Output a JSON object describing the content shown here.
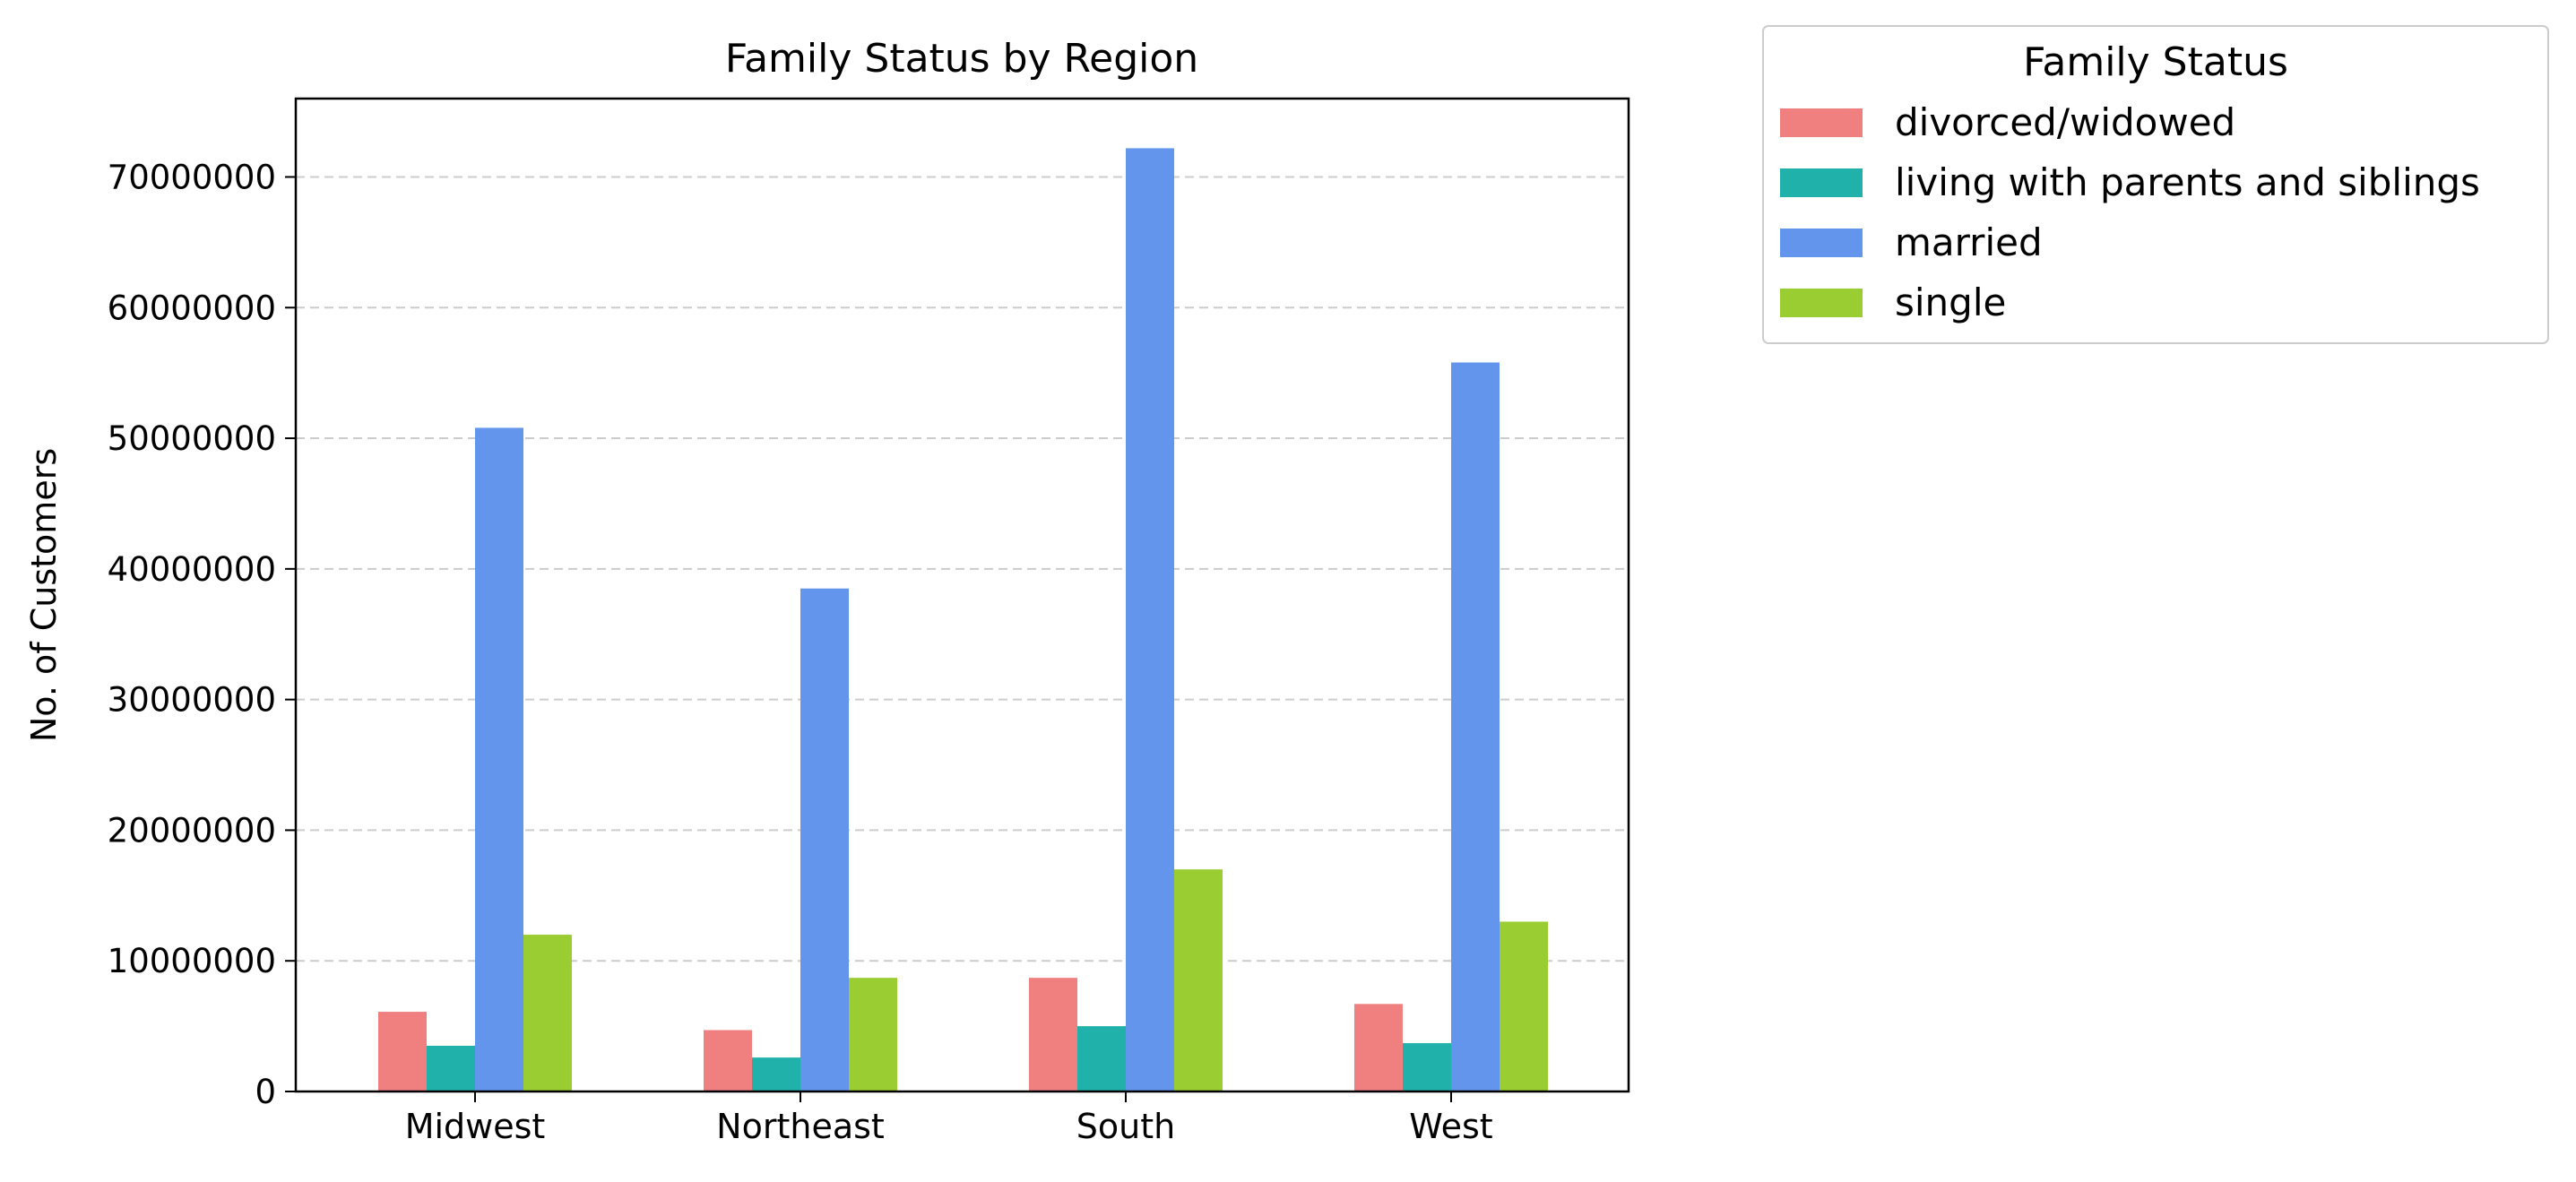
{
  "chart_data": {
    "type": "bar",
    "title": "Family Status by Region",
    "xlabel": "",
    "ylabel": "No. of Customers",
    "categories": [
      "Midwest",
      "Northeast",
      "South",
      "West"
    ],
    "ylim": [
      0,
      76000000
    ],
    "yticks": [
      0,
      10000000,
      20000000,
      30000000,
      40000000,
      50000000,
      60000000,
      70000000
    ],
    "ytick_labels": [
      "0",
      "10000000",
      "20000000",
      "30000000",
      "40000000",
      "50000000",
      "60000000",
      "70000000"
    ],
    "grid": "y-dashed",
    "legend": {
      "title": "Family Status",
      "placement": "outside-top-right"
    },
    "series": [
      {
        "name": "divorced/widowed",
        "color": "#f08080",
        "values": [
          6100000,
          4700000,
          8700000,
          6700000
        ]
      },
      {
        "name": "living with parents and siblings",
        "color": "#20b2aa",
        "values": [
          3500000,
          2600000,
          5000000,
          3700000
        ]
      },
      {
        "name": "married",
        "color": "#6495ed",
        "values": [
          50800000,
          38500000,
          72200000,
          55800000
        ]
      },
      {
        "name": "single",
        "color": "#9acd32",
        "values": [
          12000000,
          8700000,
          17000000,
          13000000
        ]
      }
    ]
  }
}
